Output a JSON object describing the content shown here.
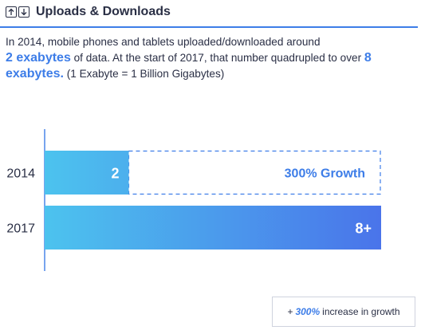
{
  "header": {
    "title": "Uploads & Downloads",
    "icons": [
      "arrow-up-icon",
      "arrow-down-icon"
    ]
  },
  "description": {
    "line1": "In 2014, mobile phones and tablets uploaded/downloaded around",
    "hl1": "2 exabytes",
    "mid": " of data. At the start of 2017, that number quadrupled to over ",
    "hl2": "8 exabytes.",
    "tail": " (1 Exabyte = 1 Billion Gigabytes)"
  },
  "chart_data": {
    "type": "bar",
    "orientation": "horizontal",
    "unit": "exabytes",
    "categories": [
      "2014",
      "2017"
    ],
    "values": [
      2,
      8
    ],
    "value_labels": [
      "2",
      "8+"
    ],
    "growth_label": "300% Growth",
    "xlim": [
      0,
      8
    ],
    "colors": {
      "start": "#4cc3ee",
      "end": "#4a74ea",
      "accent": "#3d7de8",
      "axis": "#4a86e8"
    }
  },
  "callout": {
    "prefix": "+ ",
    "percent": "300%",
    "suffix": " increase in growth"
  }
}
